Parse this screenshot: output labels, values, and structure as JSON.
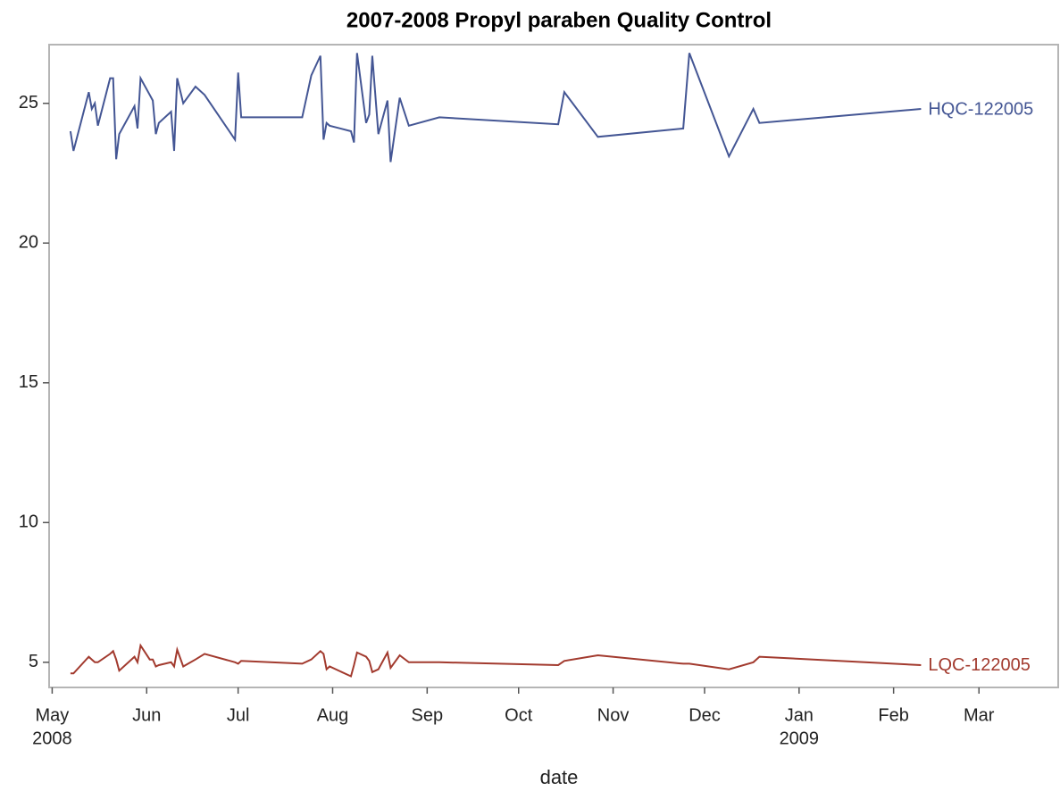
{
  "chart_data": {
    "type": "line",
    "title": "2007-2008 Propyl paraben Quality Control",
    "x_label": "date",
    "x": [
      "2008-05-07",
      "2008-05-08",
      "2008-05-13",
      "2008-05-14",
      "2008-05-15",
      "2008-05-16",
      "2008-05-20",
      "2008-05-21",
      "2008-05-22",
      "2008-05-23",
      "2008-05-28",
      "2008-05-29",
      "2008-05-30",
      "2008-06-02",
      "2008-06-03",
      "2008-06-04",
      "2008-06-05",
      "2008-06-09",
      "2008-06-10",
      "2008-06-11",
      "2008-06-13",
      "2008-06-17",
      "2008-06-20",
      "2008-06-30",
      "2008-07-01",
      "2008-07-02",
      "2008-07-22",
      "2008-07-25",
      "2008-07-28",
      "2008-07-29",
      "2008-07-30",
      "2008-07-31",
      "2008-08-07",
      "2008-08-08",
      "2008-08-09",
      "2008-08-12",
      "2008-08-13",
      "2008-08-14",
      "2008-08-16",
      "2008-08-19",
      "2008-08-20",
      "2008-08-23",
      "2008-08-26",
      "2008-09-05",
      "2008-10-14",
      "2008-10-16",
      "2008-10-27",
      "2008-11-24",
      "2008-11-26",
      "2008-12-09",
      "2008-12-17",
      "2008-12-19",
      "2009-02-10"
    ],
    "series": [
      {
        "name": "HQC-122005",
        "color": "#445694",
        "values": [
          24.0,
          23.3,
          25.4,
          24.8,
          25.0,
          24.2,
          25.9,
          25.9,
          23.0,
          23.9,
          24.9,
          24.1,
          25.9,
          25.3,
          25.1,
          23.9,
          24.3,
          24.7,
          23.3,
          25.9,
          25.0,
          25.6,
          25.3,
          23.7,
          26.1,
          24.5,
          24.5,
          26.0,
          26.7,
          23.7,
          24.3,
          24.2,
          24.0,
          23.6,
          26.8,
          24.3,
          24.6,
          26.7,
          23.9,
          25.1,
          22.9,
          25.2,
          24.2,
          24.5,
          24.25,
          25.4,
          23.8,
          24.1,
          26.8,
          23.1,
          24.8,
          24.3,
          24.8
        ]
      },
      {
        "name": "LQC-122005",
        "color": "#a23a2e",
        "values": [
          4.6,
          4.6,
          5.2,
          5.1,
          5.0,
          5.0,
          5.3,
          5.4,
          5.1,
          4.7,
          5.2,
          5.0,
          5.6,
          5.1,
          5.1,
          4.85,
          4.9,
          5.0,
          4.85,
          5.45,
          4.85,
          5.1,
          5.3,
          5.0,
          4.95,
          5.05,
          4.95,
          5.1,
          5.4,
          5.3,
          4.75,
          4.85,
          4.5,
          4.9,
          5.35,
          5.2,
          5.05,
          4.65,
          4.75,
          5.35,
          4.8,
          5.25,
          5.0,
          5.0,
          4.9,
          5.05,
          5.25,
          4.95,
          4.95,
          4.75,
          5.0,
          5.2,
          4.9
        ]
      }
    ],
    "xlim": [
      "2008-04-30",
      "2009-03-27"
    ],
    "xticks": [
      {
        "value": "2008-05-01",
        "label": "May"
      },
      {
        "value": "2008-06-01",
        "label": "Jun"
      },
      {
        "value": "2008-07-01",
        "label": "Jul"
      },
      {
        "value": "2008-08-01",
        "label": "Aug"
      },
      {
        "value": "2008-09-01",
        "label": "Sep"
      },
      {
        "value": "2008-10-01",
        "label": "Oct"
      },
      {
        "value": "2008-11-01",
        "label": "Nov"
      },
      {
        "value": "2008-12-01",
        "label": "Dec"
      },
      {
        "value": "2009-01-01",
        "label": "Jan"
      },
      {
        "value": "2009-02-01",
        "label": "Feb"
      },
      {
        "value": "2009-03-01",
        "label": "Mar"
      }
    ],
    "xtick_years": [
      {
        "value": "2008-05-01",
        "label": "2008"
      },
      {
        "value": "2009-01-01",
        "label": "2009"
      }
    ],
    "ylim": [
      4.1,
      27.1
    ],
    "yticks": [
      5,
      10,
      15,
      20,
      25
    ]
  }
}
